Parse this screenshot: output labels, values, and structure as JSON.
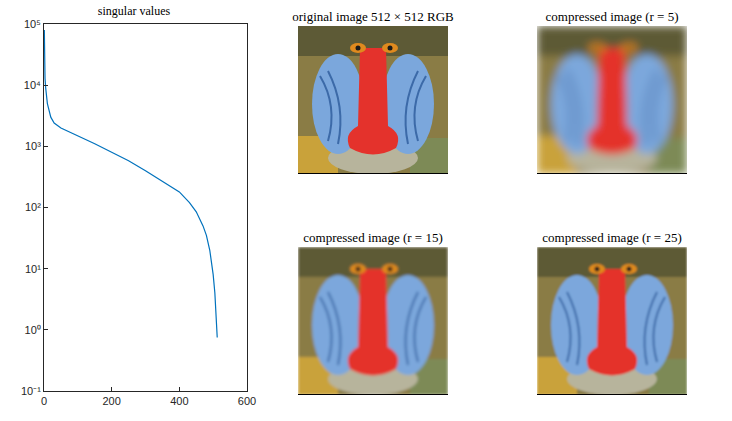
{
  "chart_data": {
    "type": "line",
    "title": "singular values",
    "log": "y",
    "grid": false,
    "x": [
      1,
      2,
      3,
      5,
      10,
      20,
      30,
      50,
      100,
      150,
      200,
      250,
      300,
      350,
      400,
      430,
      450,
      470,
      480,
      490,
      500,
      505,
      510,
      512
    ],
    "values": [
      80000,
      20000,
      13000,
      9000,
      5000,
      3000,
      2400,
      2000,
      1500,
      1100,
      800,
      580,
      400,
      270,
      180,
      120,
      85,
      50,
      35,
      20,
      8,
      4,
      1.5,
      0.75
    ],
    "color": "#0072bd",
    "xlim": [
      0,
      600
    ],
    "xticks": [
      0,
      200,
      400,
      600
    ],
    "ylim": [
      0.1,
      100000
    ],
    "yticks": [
      {
        "value": 0.1,
        "label": "10⁻¹"
      },
      {
        "value": 1,
        "label": "10⁰"
      },
      {
        "value": 10,
        "label": "10¹"
      },
      {
        "value": 100,
        "label": "10²"
      },
      {
        "value": 1000,
        "label": "10³"
      },
      {
        "value": 10000,
        "label": "10⁴"
      },
      {
        "value": 100000,
        "label": "10⁵"
      }
    ]
  },
  "images": [
    {
      "title": "original image 512 × 512 RGB"
    },
    {
      "title": "compressed image (r = 5)"
    },
    {
      "title": "compressed image (r = 15)"
    },
    {
      "title": "compressed image (r = 25)"
    }
  ]
}
